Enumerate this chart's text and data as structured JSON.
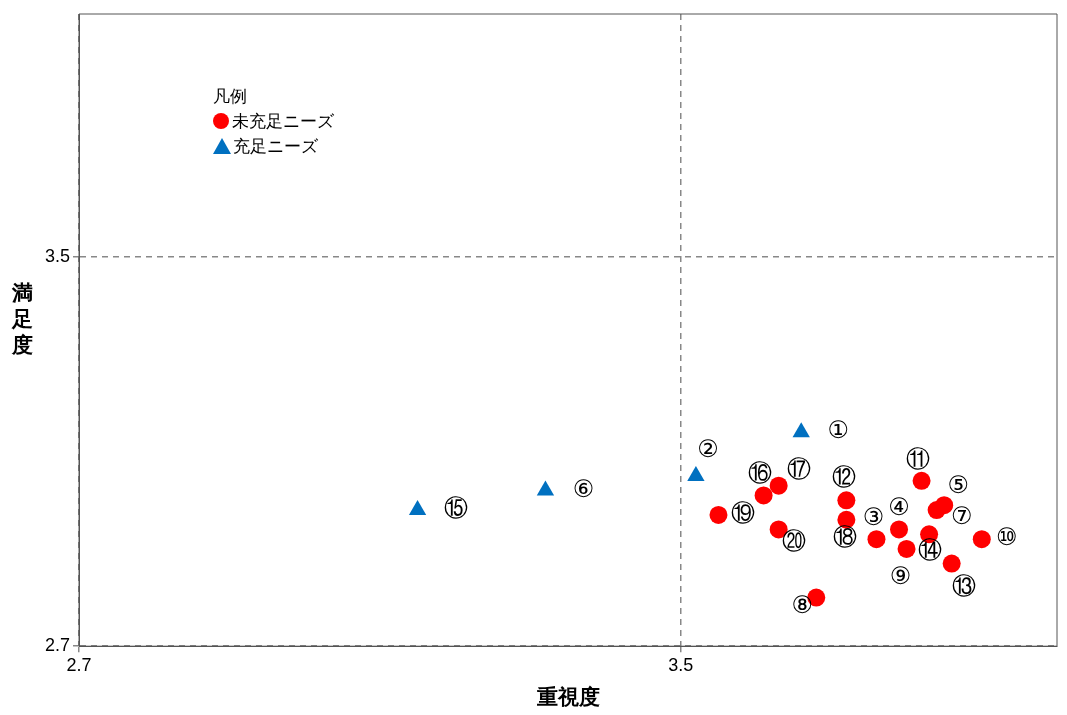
{
  "chart_data": {
    "type": "scatter",
    "xlabel": "重視度",
    "ylabel": "満足度",
    "legend_title": "凡例",
    "legend": "top left",
    "grid": true,
    "xlim": [
      2.7,
      4.0
    ],
    "xticks": [
      2.7,
      3.5
    ],
    "ylim": [
      2.7,
      4.0
    ],
    "yticks": [
      2.7,
      3.5
    ],
    "series": [
      {
        "name": "未充足ニーズ",
        "color": "#ff0000",
        "marker": "circle",
        "x": [
          3.76,
          3.79,
          3.85,
          3.84,
          3.68,
          3.8,
          3.9,
          3.82,
          3.72,
          3.86,
          3.83,
          3.61,
          3.63,
          3.72,
          3.55,
          3.63
        ],
        "values": [
          2.92,
          2.94,
          2.99,
          2.98,
          2.8,
          2.9,
          2.92,
          3.04,
          3.0,
          2.87,
          2.93,
          3.01,
          3.03,
          2.96,
          2.97,
          2.94
        ]
      },
      {
        "name": "充足ニーズ",
        "color": "#0070c0",
        "marker": "triangle",
        "x": [
          3.66,
          3.52,
          3.32,
          3.15
        ],
        "values": [
          3.14,
          3.05,
          3.02,
          2.98
        ]
      }
    ],
    "annotations": [
      {
        "text": "①",
        "x": 3.66,
        "y": 3.14
      },
      {
        "text": "②",
        "x": 3.52,
        "y": 3.05
      },
      {
        "text": "③",
        "x": 3.76,
        "y": 2.92
      },
      {
        "text": "④",
        "x": 3.79,
        "y": 2.94
      },
      {
        "text": "⑤",
        "x": 3.85,
        "y": 2.99
      },
      {
        "text": "⑥",
        "x": 3.32,
        "y": 3.02
      },
      {
        "text": "⑦",
        "x": 3.84,
        "y": 2.98
      },
      {
        "text": "⑧",
        "x": 3.68,
        "y": 2.8
      },
      {
        "text": "⑨",
        "x": 3.8,
        "y": 2.9
      },
      {
        "text": "⑩",
        "x": 3.9,
        "y": 2.92
      },
      {
        "text": "⑪",
        "x": 3.82,
        "y": 3.04
      },
      {
        "text": "⑫",
        "x": 3.72,
        "y": 3.0
      },
      {
        "text": "⑬",
        "x": 3.86,
        "y": 2.87
      },
      {
        "text": "⑭",
        "x": 3.83,
        "y": 2.93
      },
      {
        "text": "⑮",
        "x": 3.15,
        "y": 2.98
      },
      {
        "text": "⑯",
        "x": 3.61,
        "y": 3.01
      },
      {
        "text": "⑰",
        "x": 3.63,
        "y": 3.03
      },
      {
        "text": "⑱",
        "x": 3.72,
        "y": 2.96
      },
      {
        "text": "⑲",
        "x": 3.55,
        "y": 2.97
      },
      {
        "text": "⑳",
        "x": 3.63,
        "y": 2.94
      }
    ]
  }
}
